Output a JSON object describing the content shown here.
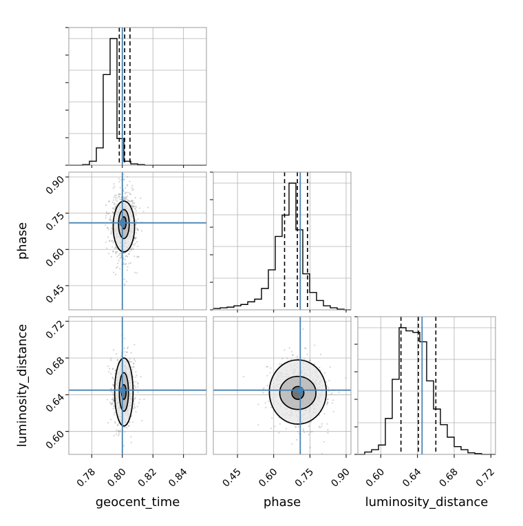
{
  "chart_data": {
    "type": "corner",
    "parameters": [
      "geocent_time",
      "phase",
      "luminosity_distance"
    ],
    "truths": {
      "geocent_time": 0.8,
      "phase": 0.71,
      "luminosity_distance": 0.645
    },
    "ranges": {
      "geocent_time": [
        0.765,
        0.855
      ],
      "phase": [
        0.35,
        0.92
      ],
      "luminosity_distance": [
        0.575,
        0.725
      ]
    },
    "ticks": {
      "geocent_time": {
        "values": [
          0.78,
          0.8,
          0.82,
          0.84
        ],
        "labels": [
          "0.78",
          "0.80",
          "0.82",
          "0.84"
        ]
      },
      "phase": {
        "values": [
          0.45,
          0.6,
          0.75,
          0.9
        ],
        "labels": [
          "0.45",
          "0.60",
          "0.75",
          "0.90"
        ]
      },
      "luminosity_distance": {
        "values": [
          0.6,
          0.64,
          0.68,
          0.72
        ],
        "labels": [
          "0.60",
          "0.64",
          "0.68",
          "0.72"
        ]
      }
    },
    "histograms": {
      "geocent_time": {
        "edges": [
          0.765,
          0.7695,
          0.774,
          0.7785,
          0.783,
          0.7875,
          0.792,
          0.7965,
          0.801,
          0.8055,
          0.81,
          0.8145,
          0.819,
          0.8235,
          0.828,
          0.8325,
          0.837,
          0.8415,
          0.846,
          0.8505,
          0.855
        ],
        "counts": [
          0.0,
          0.0,
          0.005,
          0.03,
          0.13,
          0.68,
          0.95,
          0.2,
          0.03,
          0.01,
          0.005,
          0.0,
          0.0,
          0.0,
          0.0,
          0.0,
          0.0,
          0.0,
          0.0,
          0.0
        ],
        "quantiles": [
          0.798,
          0.8015,
          0.805
        ]
      },
      "phase": {
        "edges": [
          0.35,
          0.3785,
          0.407,
          0.4355,
          0.464,
          0.4925,
          0.521,
          0.5495,
          0.578,
          0.6065,
          0.635,
          0.6635,
          0.692,
          0.7205,
          0.749,
          0.7775,
          0.806,
          0.8345,
          0.863,
          0.8915,
          0.92
        ],
        "counts": [
          0.01,
          0.015,
          0.02,
          0.03,
          0.04,
          0.06,
          0.08,
          0.16,
          0.3,
          0.55,
          0.71,
          0.95,
          0.6,
          0.27,
          0.13,
          0.07,
          0.03,
          0.015,
          0.005,
          0.0
        ],
        "quantiles": [
          0.645,
          0.698,
          0.74
        ]
      },
      "luminosity_distance": {
        "edges": [
          0.575,
          0.5825,
          0.59,
          0.5975,
          0.605,
          0.6125,
          0.62,
          0.6275,
          0.635,
          0.6425,
          0.65,
          0.6575,
          0.665,
          0.6725,
          0.68,
          0.6875,
          0.695,
          0.7025,
          0.71,
          0.7175,
          0.725
        ],
        "counts": [
          0.0,
          0.015,
          0.03,
          0.06,
          0.23,
          0.48,
          0.81,
          0.79,
          0.78,
          0.72,
          0.47,
          0.29,
          0.19,
          0.11,
          0.05,
          0.03,
          0.01,
          0.005,
          0.0,
          0.0
        ],
        "quantiles": [
          0.622,
          0.641,
          0.66
        ]
      }
    },
    "scatter_2d": [
      {
        "x": "geocent_time",
        "y": "phase",
        "center": [
          0.801,
          0.705
        ],
        "sigma": [
          0.0035,
          0.06
        ],
        "contours": [
          {
            "center": [
              0.801,
              0.71
            ],
            "half_width": [
              0.0015,
              0.025
            ]
          },
          {
            "center": [
              0.801,
              0.705
            ],
            "half_width": [
              0.0035,
              0.06
            ]
          },
          {
            "center": [
              0.801,
              0.695
            ],
            "half_width": [
              0.007,
              0.105
            ]
          }
        ]
      },
      {
        "x": "geocent_time",
        "y": "luminosity_distance",
        "center": [
          0.801,
          0.643
        ],
        "sigma": [
          0.003,
          0.015
        ],
        "contours": [
          {
            "center": [
              0.801,
              0.643
            ],
            "half_width": [
              0.0015,
              0.008
            ]
          },
          {
            "center": [
              0.801,
              0.643
            ],
            "half_width": [
              0.003,
              0.021
            ]
          },
          {
            "center": [
              0.801,
              0.643
            ],
            "half_width": [
              0.006,
              0.037
            ]
          }
        ]
      },
      {
        "x": "phase",
        "y": "luminosity_distance",
        "center": [
          0.71,
          0.642
        ],
        "sigma": [
          0.045,
          0.014
        ],
        "contours": [
          {
            "center": [
              0.7,
              0.642
            ],
            "half_width": [
              0.025,
              0.007
            ]
          },
          {
            "center": [
              0.7,
              0.642
            ],
            "half_width": [
              0.075,
              0.018
            ]
          },
          {
            "center": [
              0.7,
              0.643
            ],
            "half_width": [
              0.118,
              0.035
            ]
          }
        ]
      }
    ],
    "grid": true,
    "colors": {
      "truth": "#4682b4",
      "hist": "#000000",
      "scatter": "#808080",
      "grid": "#b0b0b0"
    }
  }
}
